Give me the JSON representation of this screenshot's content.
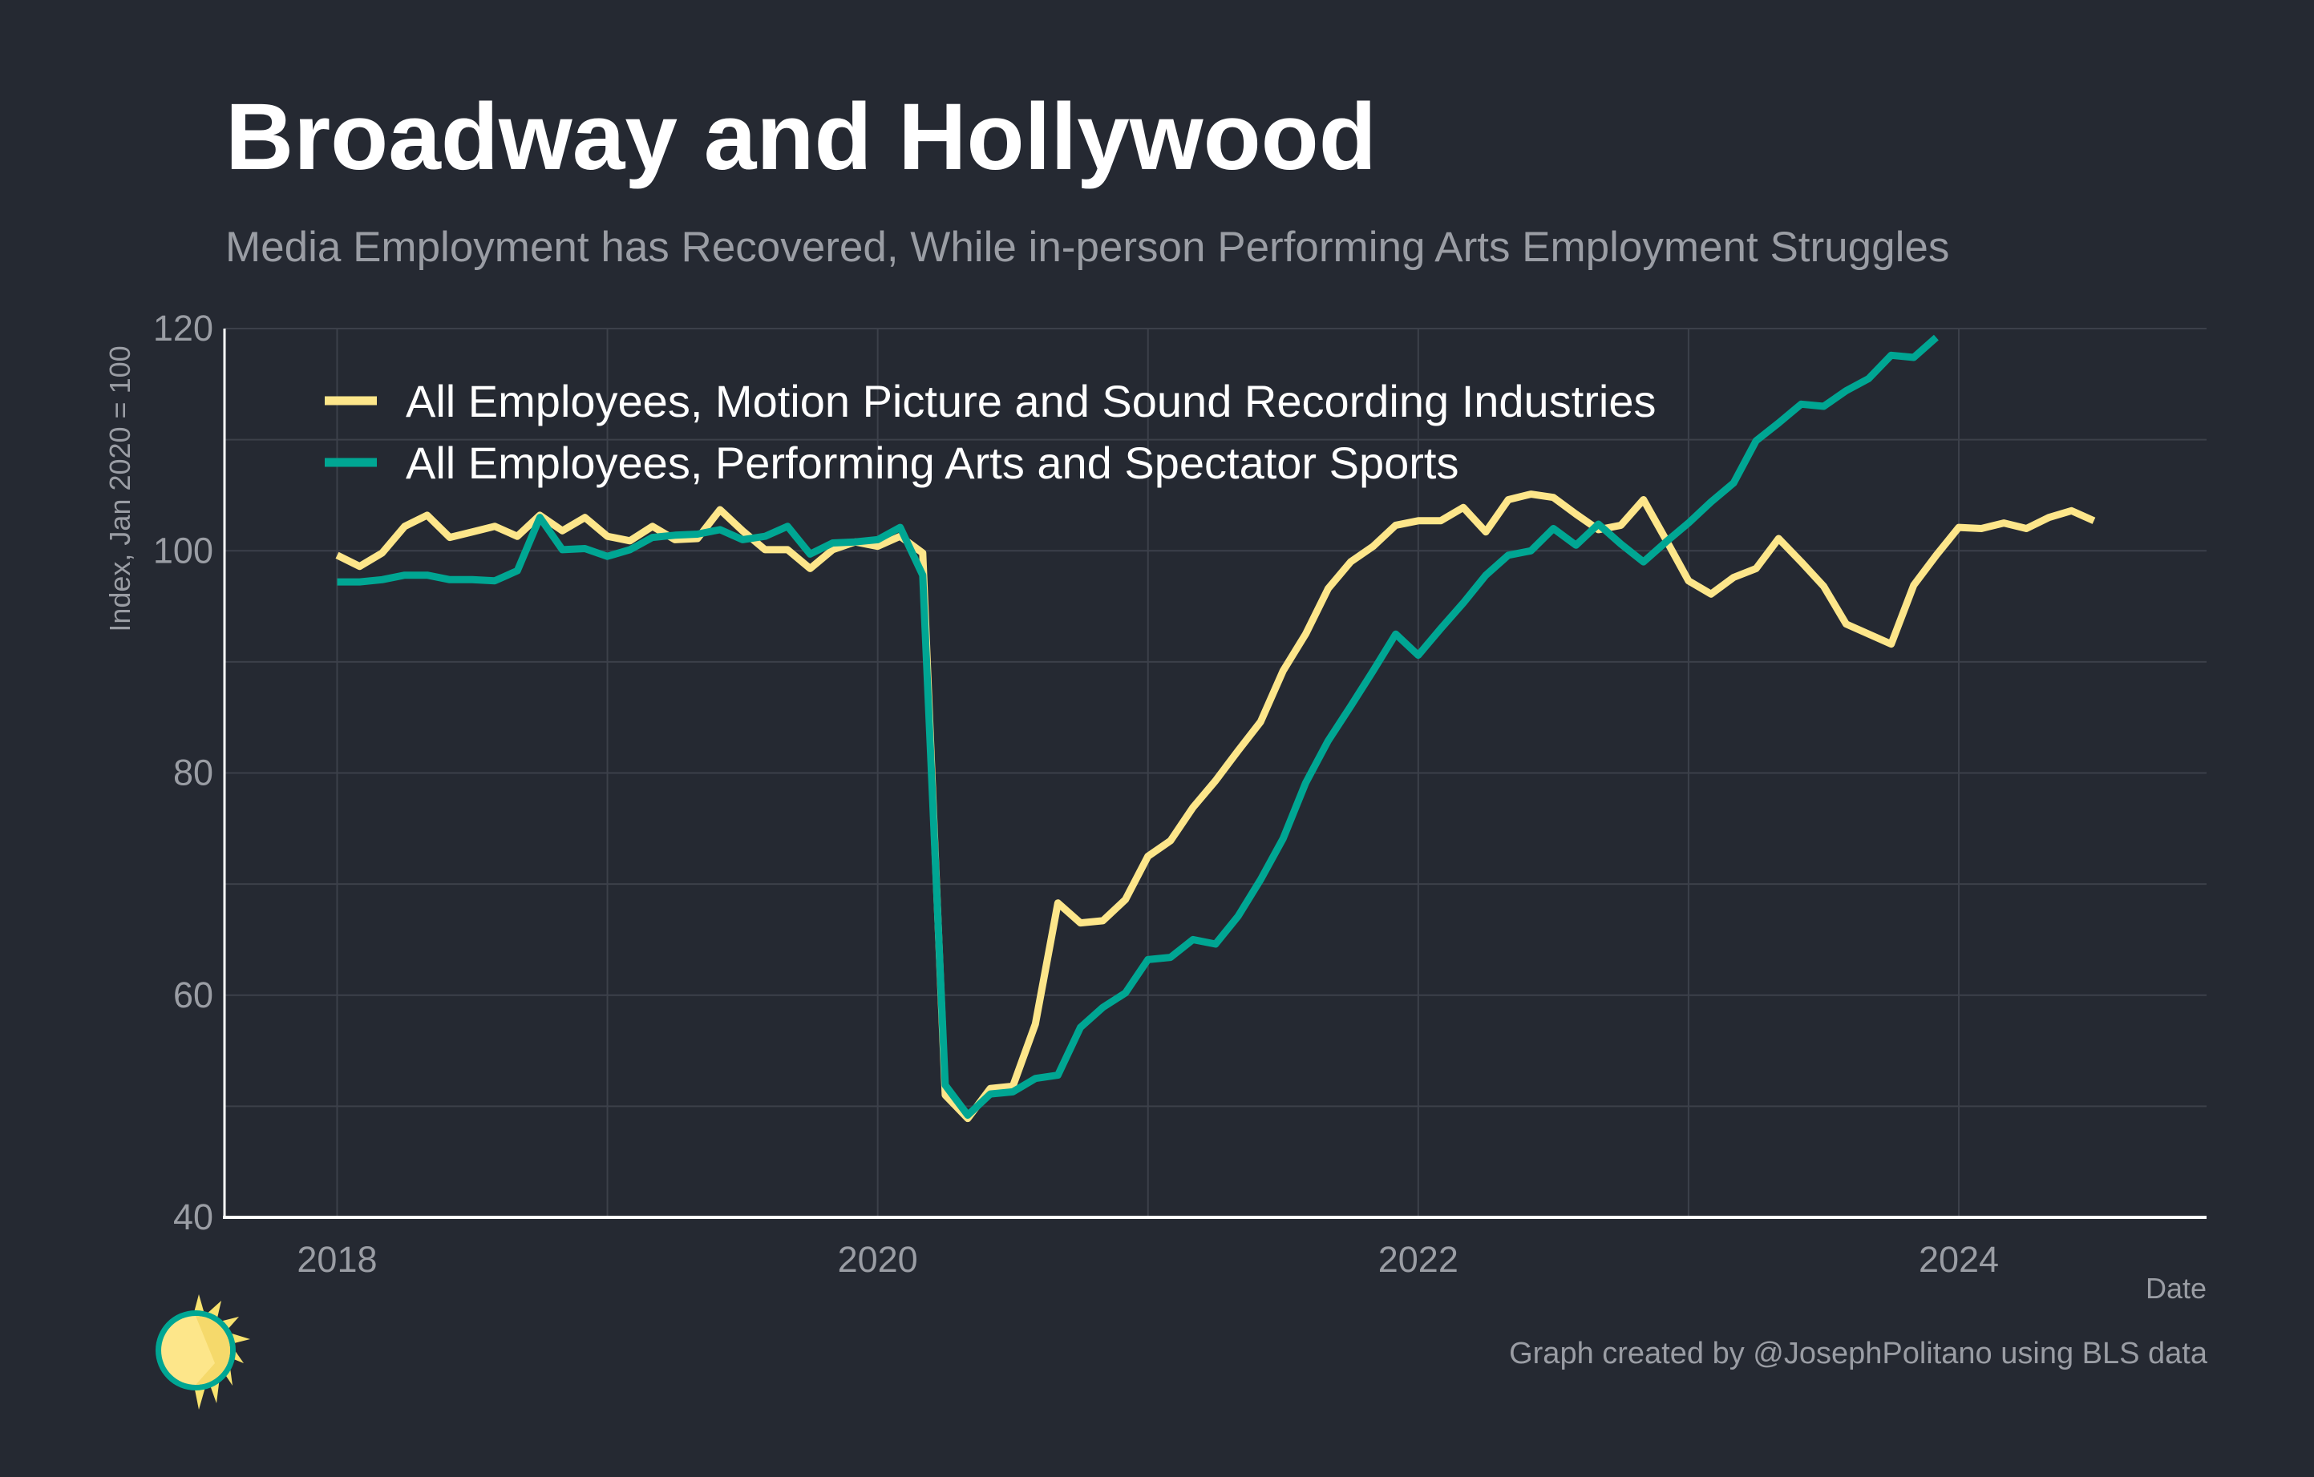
{
  "header": {
    "title": "Broadway and Hollywood",
    "subtitle": "Media Employment has Recovered, While in-person Performing Arts Employment Struggles"
  },
  "footer": {
    "credit": "Graph created by @JosephPolitano using BLS data",
    "logo_icon": "sun-logo-icon"
  },
  "colors": {
    "background": "#252932",
    "grid": "#3c404a",
    "axis": "#ffffff",
    "muted_text": "#9a9da4",
    "series_motion": "#fde68a",
    "series_performing": "#00a693"
  },
  "chart_data": {
    "type": "line",
    "xlabel": "Date",
    "ylabel": "Index, Jan 2020 = 100",
    "xlim": [
      "2017-08",
      "2024-12"
    ],
    "ylim": [
      40,
      120
    ],
    "x_ticks": [
      "2018",
      "2020",
      "2022",
      "2024"
    ],
    "y_ticks": [
      40,
      60,
      80,
      100,
      120
    ],
    "grid": true,
    "legend_position": "top-left",
    "series": [
      {
        "name": "All Employees, Motion Picture and Sound Recording Industries",
        "color": "#fde68a",
        "start": "2018-01",
        "frequency": "monthly",
        "values": [
          99.6,
          98.6,
          99.8,
          102.2,
          103.2,
          101.2,
          101.7,
          102.2,
          101.3,
          103.2,
          101.8,
          103.0,
          101.3,
          100.9,
          102.2,
          101.0,
          101.1,
          103.7,
          101.8,
          100.1,
          100.1,
          98.4,
          100.1,
          100.8,
          100.4,
          101.3,
          99.8,
          51.0,
          48.9,
          51.6,
          51.8,
          57.4,
          68.3,
          66.5,
          66.7,
          68.6,
          72.5,
          73.9,
          76.9,
          79.3,
          82.0,
          84.6,
          89.2,
          92.5,
          96.6,
          99.0,
          100.4,
          102.3,
          102.7,
          102.7,
          103.9,
          101.7,
          104.6,
          105.1,
          104.8,
          103.3,
          101.9,
          102.3,
          104.6,
          101.0,
          97.3,
          96.1,
          97.6,
          98.4,
          101.1,
          99.0,
          96.8,
          93.4,
          92.5,
          91.6,
          96.9,
          99.6,
          102.1,
          102.0,
          102.5,
          102.0,
          103.0,
          103.6,
          102.7
        ]
      },
      {
        "name": "All Employees, Performing Arts and Spectator Sports",
        "color": "#00a693",
        "start": "2018-01",
        "frequency": "monthly",
        "values": [
          97.2,
          97.2,
          97.4,
          97.8,
          97.8,
          97.4,
          97.4,
          97.3,
          98.2,
          103.0,
          100.1,
          100.2,
          99.5,
          100.1,
          101.2,
          101.4,
          101.5,
          101.9,
          101.0,
          101.3,
          102.2,
          99.7,
          100.7,
          100.8,
          101.0,
          102.1,
          97.8,
          51.9,
          49.2,
          51.1,
          51.3,
          52.5,
          52.8,
          57.1,
          58.9,
          60.2,
          63.2,
          63.4,
          65.0,
          64.6,
          67.1,
          70.4,
          74.1,
          79.1,
          82.9,
          86.0,
          89.2,
          92.5,
          90.6,
          93.0,
          95.3,
          97.8,
          99.6,
          100.0,
          102.0,
          100.5,
          102.4,
          100.6,
          99.0,
          100.8,
          102.5,
          104.4,
          106.1,
          109.9,
          111.5,
          113.2,
          113.0,
          114.4,
          115.5,
          117.6,
          117.4,
          119.2
        ]
      }
    ]
  }
}
